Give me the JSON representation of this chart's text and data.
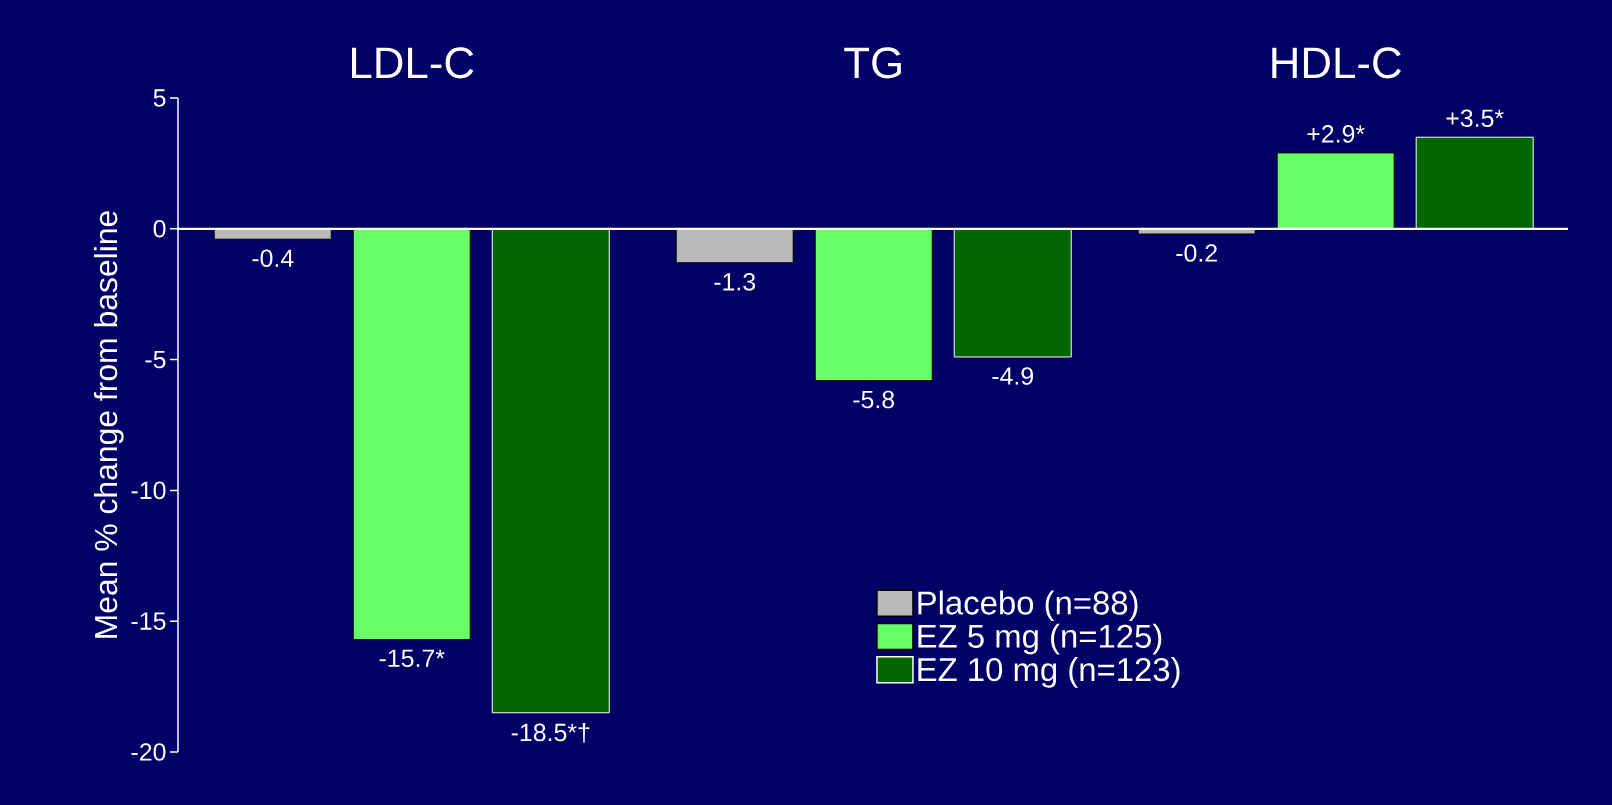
{
  "chart_data": {
    "type": "bar",
    "ylabel": "Mean % change from baseline",
    "categories": [
      "LDL-C",
      "TG",
      "HDL-C"
    ],
    "series": [
      {
        "name": "Placebo (n=88)",
        "color": "#b8b8b8",
        "values": [
          -0.4,
          -1.3,
          -0.2
        ],
        "value_labels": [
          "-0.4",
          "-1.3",
          "-0.2"
        ]
      },
      {
        "name": "EZ 5 mg (n=125)",
        "color": "#66ff66",
        "values": [
          -15.7,
          -5.8,
          2.9
        ],
        "value_labels": [
          "-15.7*",
          "-5.8",
          "+2.9*"
        ]
      },
      {
        "name": "EZ 10 mg (n=123)",
        "color": "#006600",
        "values": [
          -18.5,
          -4.9,
          3.5
        ],
        "value_labels": [
          "-18.5*†",
          "-4.9",
          "+3.5*"
        ]
      }
    ],
    "ylim": [
      -20,
      5
    ],
    "yticks": [
      -20,
      -15,
      -10,
      -5,
      0,
      5
    ],
    "legend": "bottom right",
    "ref_lines": [
      {
        "axis": "y",
        "value": 0,
        "color": "#ffffff"
      }
    ]
  }
}
